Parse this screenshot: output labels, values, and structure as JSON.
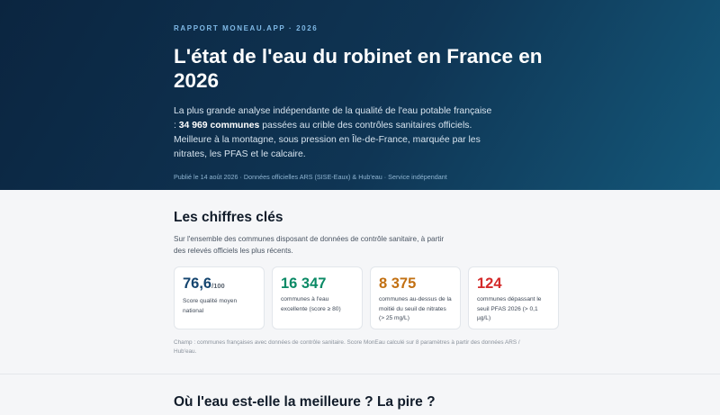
{
  "hero": {
    "kicker": "RAPPORT MONEAU.APP · 2026",
    "title": "L'état de l'eau du robinet en France en 2026",
    "lead_part1": "La plus grande analyse indépendante de la qualité de l'eau potable française : ",
    "lead_bold": "34 969 communes",
    "lead_part2": " passées au crible des contrôles sanitaires officiels. Meilleure à la montagne, sous pression en Île-de-France, marquée par les nitrates, les PFAS et le calcaire.",
    "meta": "Publié le 14 août 2026 · Données officielles ARS (SISE-Eaux) & Hub'eau · Service indépendant"
  },
  "key_figures": {
    "heading": "Les chiffres clés",
    "intro": "Sur l'ensemble des communes disposant de données de contrôle sanitaire, à partir des relevés officiels les plus récents.",
    "cards": [
      {
        "value": "76,6",
        "unit": "/100",
        "label": "Score qualité moyen national",
        "color": "#15456f"
      },
      {
        "value": "16 347",
        "unit": "",
        "label": "communes à l'eau excellente (score ≥ 80)",
        "color": "#0b8a66"
      },
      {
        "value": "8 375",
        "unit": "",
        "label": "communes au-dessus de la moitié du seuil de nitrates (> 25 mg/L)",
        "color": "#c27012"
      },
      {
        "value": "124",
        "unit": "",
        "label": "communes dépassant le seuil PFAS 2026 (> 0,1 µg/L)",
        "color": "#d42a2a"
      }
    ],
    "note": "Champ : communes françaises avec données de contrôle sanitaire. Score MonEau calculé sur 8 paramètres à partir des données ARS / Hub'eau."
  },
  "next_section": {
    "heading": "Où l'eau est-elle la meilleure ? La pire ?"
  }
}
